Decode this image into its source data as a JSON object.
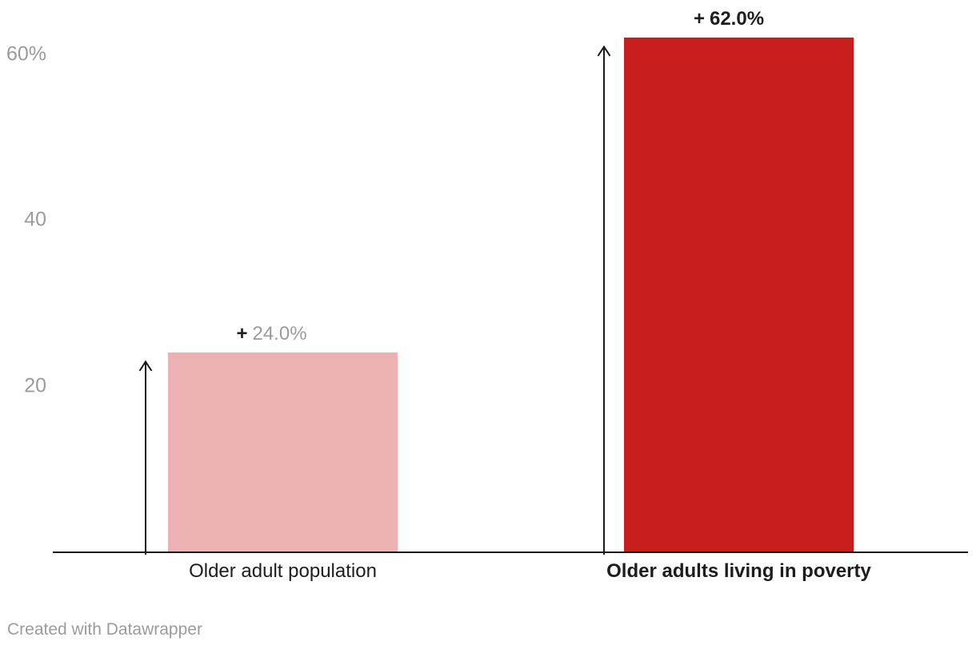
{
  "chart_data": {
    "type": "bar",
    "title": "",
    "categories": [
      "Older adult population",
      "Older adults living in poverty"
    ],
    "series": [
      {
        "category": "Older adult population",
        "value": 24.0,
        "plus_sign": "+",
        "value_display": "24.0%",
        "bar_color": "#ecb1b2",
        "emphasized": false
      },
      {
        "category": "Older adults living in poverty",
        "value": 62.0,
        "plus_sign": "+",
        "value_display": "62.0%",
        "bar_color": "#c81d1d",
        "emphasized": true
      }
    ],
    "yticks": [
      {
        "value": 20,
        "label": "20"
      },
      {
        "value": 40,
        "label": "40"
      },
      {
        "value": 60,
        "label": "60%"
      }
    ],
    "ylim": [
      0,
      66
    ],
    "xlabel": "",
    "ylabel": "",
    "grid": false,
    "legend": "none",
    "annotations": [
      "up-arrow beside each bar indicating increase"
    ]
  },
  "colors": {
    "background": "#ffffff",
    "axis_line": "#1a1a1a",
    "arrow": "#1a1a1a",
    "tick_label": "#9b9b9b",
    "muted_value": "#9b9b9b",
    "emphasis_text": "#1d1d1d",
    "bar_muted": "#ecb1b2",
    "bar_emphasis": "#c81d1d",
    "footer_text": "#9b9b9b"
  },
  "footer": {
    "attribution": "Created with Datawrapper"
  }
}
